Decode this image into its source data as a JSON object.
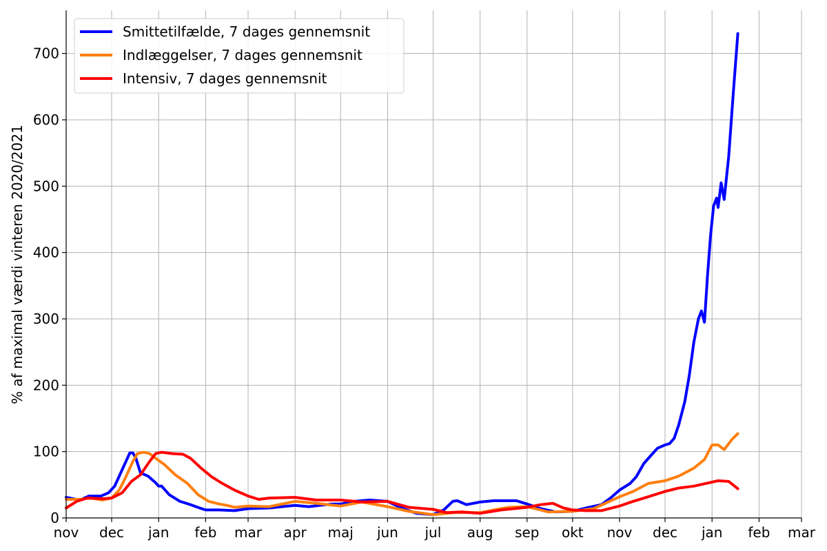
{
  "chart_data": {
    "type": "line",
    "title": "",
    "xlabel": "",
    "ylabel": "% af maximal værdi vinteren 2020/2021",
    "x_tick_labels": [
      "nov",
      "dec",
      "jan",
      "feb",
      "mar",
      "apr",
      "maj",
      "jun",
      "jul",
      "aug",
      "sep",
      "okt",
      "nov",
      "dec",
      "jan",
      "feb",
      "mar"
    ],
    "x_ticks": [
      "2020-11-01",
      "2020-12-01",
      "2021-01-01",
      "2021-02-01",
      "2021-03-01",
      "2021-04-01",
      "2021-05-01",
      "2021-06-01",
      "2021-07-01",
      "2021-08-01",
      "2021-09-01",
      "2021-10-01",
      "2021-11-01",
      "2021-12-01",
      "2022-01-01",
      "2022-02-01",
      "2022-03-01"
    ],
    "xlim": [
      "2020-11-01",
      "2022-03-01"
    ],
    "y_ticks": [
      0,
      100,
      200,
      300,
      400,
      500,
      600,
      700
    ],
    "ylim": [
      0,
      765
    ],
    "grid": true,
    "legend_position": "top-left",
    "series": [
      {
        "name": "Smittetilfælde, 7 dages gennemsnit",
        "color": "#0000ff",
        "points": [
          [
            "2020-11-01",
            31
          ],
          [
            "2020-11-10",
            27
          ],
          [
            "2020-11-16",
            33
          ],
          [
            "2020-11-24",
            33
          ],
          [
            "2020-11-29",
            38
          ],
          [
            "2020-12-03",
            48
          ],
          [
            "2020-12-07",
            68
          ],
          [
            "2020-12-11",
            88
          ],
          [
            "2020-12-13",
            98
          ],
          [
            "2020-12-15",
            98
          ],
          [
            "2020-12-17",
            90
          ],
          [
            "2020-12-20",
            68
          ],
          [
            "2020-12-25",
            63
          ],
          [
            "2020-12-30",
            53
          ],
          [
            "2021-01-01",
            48
          ],
          [
            "2021-01-03",
            48
          ],
          [
            "2021-01-08",
            35
          ],
          [
            "2021-01-15",
            25
          ],
          [
            "2021-01-22",
            20
          ],
          [
            "2021-01-28",
            15
          ],
          [
            "2021-02-01",
            12
          ],
          [
            "2021-02-10",
            12
          ],
          [
            "2021-02-20",
            11
          ],
          [
            "2021-03-01",
            14
          ],
          [
            "2021-03-15",
            15
          ],
          [
            "2021-04-01",
            19
          ],
          [
            "2021-04-10",
            17
          ],
          [
            "2021-04-25",
            21
          ],
          [
            "2021-05-01",
            21
          ],
          [
            "2021-05-10",
            25
          ],
          [
            "2021-05-20",
            27
          ],
          [
            "2021-06-01",
            25
          ],
          [
            "2021-06-10",
            15
          ],
          [
            "2021-06-20",
            7
          ],
          [
            "2021-07-01",
            5
          ],
          [
            "2021-07-08",
            12
          ],
          [
            "2021-07-14",
            25
          ],
          [
            "2021-07-17",
            26
          ],
          [
            "2021-07-23",
            20
          ],
          [
            "2021-08-01",
            24
          ],
          [
            "2021-08-10",
            26
          ],
          [
            "2021-08-25",
            26
          ],
          [
            "2021-09-01",
            21
          ],
          [
            "2021-09-10",
            14
          ],
          [
            "2021-09-20",
            9
          ],
          [
            "2021-10-01",
            10
          ],
          [
            "2021-10-10",
            15
          ],
          [
            "2021-10-20",
            20
          ],
          [
            "2021-10-26",
            30
          ],
          [
            "2021-11-01",
            42
          ],
          [
            "2021-11-08",
            52
          ],
          [
            "2021-11-12",
            62
          ],
          [
            "2021-11-17",
            82
          ],
          [
            "2021-11-22",
            95
          ],
          [
            "2021-11-26",
            105
          ],
          [
            "2021-12-01",
            110
          ],
          [
            "2021-12-04",
            112
          ],
          [
            "2021-12-07",
            120
          ],
          [
            "2021-12-10",
            140
          ],
          [
            "2021-12-14",
            175
          ],
          [
            "2021-12-17",
            215
          ],
          [
            "2021-12-20",
            265
          ],
          [
            "2021-12-23",
            300
          ],
          [
            "2021-12-25",
            312
          ],
          [
            "2021-12-27",
            295
          ],
          [
            "2021-12-29",
            365
          ],
          [
            "2021-12-31",
            425
          ],
          [
            "2022-01-02",
            470
          ],
          [
            "2022-01-04",
            482
          ],
          [
            "2022-01-05",
            468
          ],
          [
            "2022-01-07",
            505
          ],
          [
            "2022-01-09",
            480
          ],
          [
            "2022-01-12",
            545
          ],
          [
            "2022-01-15",
            640
          ],
          [
            "2022-01-18",
            730
          ]
        ]
      },
      {
        "name": "Indlæggelser, 7 dages gennemsnit",
        "color": "#ff7f0e",
        "points": [
          [
            "2020-11-01",
            28
          ],
          [
            "2020-11-10",
            28
          ],
          [
            "2020-11-17",
            30
          ],
          [
            "2020-11-25",
            27
          ],
          [
            "2020-12-01",
            30
          ],
          [
            "2020-12-06",
            42
          ],
          [
            "2020-12-10",
            60
          ],
          [
            "2020-12-15",
            85
          ],
          [
            "2020-12-18",
            97
          ],
          [
            "2020-12-22",
            99
          ],
          [
            "2020-12-26",
            97
          ],
          [
            "2020-12-30",
            90
          ],
          [
            "2021-01-05",
            80
          ],
          [
            "2021-01-12",
            65
          ],
          [
            "2021-01-20",
            52
          ],
          [
            "2021-01-27",
            35
          ],
          [
            "2021-02-03",
            25
          ],
          [
            "2021-02-10",
            21
          ],
          [
            "2021-02-15",
            19
          ],
          [
            "2021-02-20",
            16
          ],
          [
            "2021-03-01",
            18
          ],
          [
            "2021-03-15",
            17
          ],
          [
            "2021-04-01",
            25
          ],
          [
            "2021-04-15",
            22
          ],
          [
            "2021-05-01",
            18
          ],
          [
            "2021-05-15",
            24
          ],
          [
            "2021-06-01",
            17
          ],
          [
            "2021-06-15",
            10
          ],
          [
            "2021-07-01",
            5
          ],
          [
            "2021-07-15",
            8
          ],
          [
            "2021-08-01",
            8
          ],
          [
            "2021-08-10",
            12
          ],
          [
            "2021-08-20",
            16
          ],
          [
            "2021-09-01",
            17
          ],
          [
            "2021-09-15",
            9
          ],
          [
            "2021-10-01",
            10
          ],
          [
            "2021-10-15",
            14
          ],
          [
            "2021-11-01",
            32
          ],
          [
            "2021-11-10",
            40
          ],
          [
            "2021-11-20",
            52
          ],
          [
            "2021-12-01",
            56
          ],
          [
            "2021-12-10",
            63
          ],
          [
            "2021-12-20",
            75
          ],
          [
            "2021-12-27",
            88
          ],
          [
            "2022-01-01",
            110
          ],
          [
            "2022-01-05",
            110
          ],
          [
            "2022-01-09",
            103
          ],
          [
            "2022-01-14",
            118
          ],
          [
            "2022-01-18",
            127
          ]
        ]
      },
      {
        "name": "Intensiv, 7 dages gennemsnit",
        "color": "#ff0000",
        "points": [
          [
            "2020-11-01",
            15
          ],
          [
            "2020-11-08",
            25
          ],
          [
            "2020-11-15",
            30
          ],
          [
            "2020-11-25",
            29
          ],
          [
            "2020-12-01",
            30
          ],
          [
            "2020-12-08",
            38
          ],
          [
            "2020-12-14",
            55
          ],
          [
            "2020-12-20",
            65
          ],
          [
            "2020-12-26",
            85
          ],
          [
            "2020-12-30",
            97
          ],
          [
            "2021-01-03",
            99
          ],
          [
            "2021-01-10",
            97
          ],
          [
            "2021-01-17",
            96
          ],
          [
            "2021-01-22",
            90
          ],
          [
            "2021-01-29",
            75
          ],
          [
            "2021-02-05",
            62
          ],
          [
            "2021-02-12",
            52
          ],
          [
            "2021-02-20",
            42
          ],
          [
            "2021-03-01",
            33
          ],
          [
            "2021-03-08",
            28
          ],
          [
            "2021-03-15",
            30
          ],
          [
            "2021-04-01",
            31
          ],
          [
            "2021-04-15",
            27
          ],
          [
            "2021-05-01",
            27
          ],
          [
            "2021-05-15",
            24
          ],
          [
            "2021-06-01",
            25
          ],
          [
            "2021-06-15",
            16
          ],
          [
            "2021-07-01",
            13
          ],
          [
            "2021-07-10",
            8
          ],
          [
            "2021-07-20",
            9
          ],
          [
            "2021-08-01",
            7
          ],
          [
            "2021-08-15",
            12
          ],
          [
            "2021-09-01",
            16
          ],
          [
            "2021-09-10",
            20
          ],
          [
            "2021-09-18",
            22
          ],
          [
            "2021-09-25",
            15
          ],
          [
            "2021-10-01",
            12
          ],
          [
            "2021-10-10",
            11
          ],
          [
            "2021-10-20",
            11
          ],
          [
            "2021-11-01",
            18
          ],
          [
            "2021-11-10",
            25
          ],
          [
            "2021-11-20",
            32
          ],
          [
            "2021-12-01",
            40
          ],
          [
            "2021-12-10",
            45
          ],
          [
            "2021-12-20",
            48
          ],
          [
            "2021-12-28",
            52
          ],
          [
            "2022-01-05",
            56
          ],
          [
            "2022-01-12",
            55
          ],
          [
            "2022-01-18",
            44
          ]
        ]
      }
    ]
  }
}
